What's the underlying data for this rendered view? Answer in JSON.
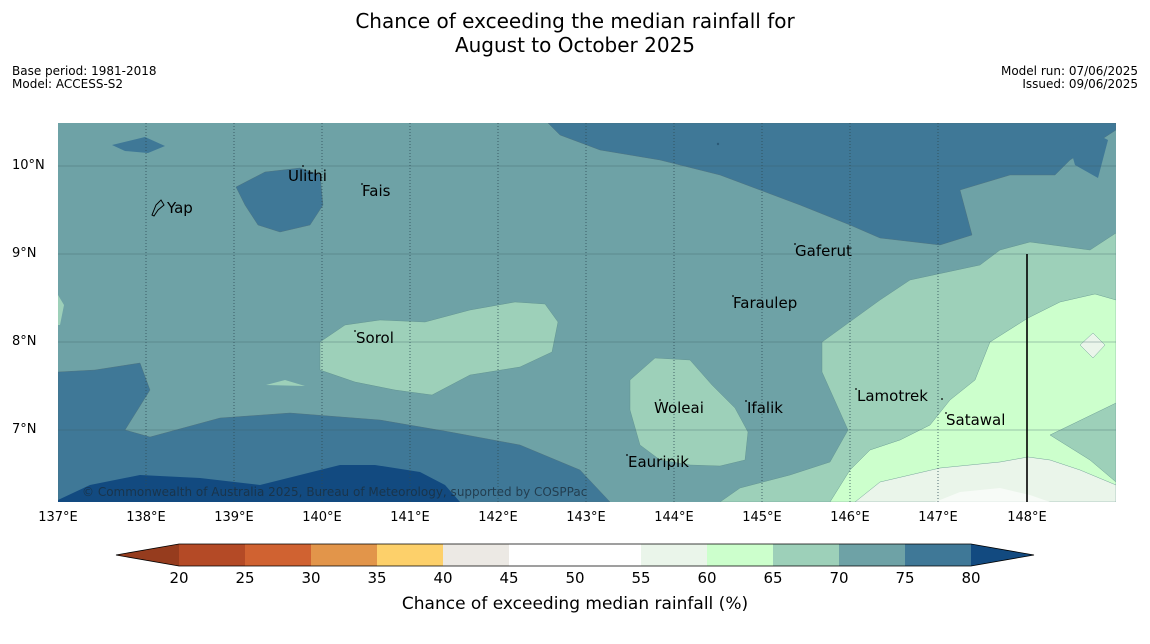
{
  "title": {
    "line1": "Chance of exceeding the median rainfall for",
    "line2": "August to October 2025"
  },
  "meta_left": {
    "base_period": "Base period: 1981-2018",
    "model": "Model: ACCESS-S2"
  },
  "meta_right": {
    "model_run": "Model run: 07/06/2025",
    "issued": "Issued: 09/06/2025"
  },
  "map": {
    "lat_labels": [
      "10°N",
      "9°N",
      "8°N",
      "7°N"
    ],
    "lon_labels": [
      "137°E",
      "138°E",
      "139°E",
      "140°E",
      "141°E",
      "142°E",
      "143°E",
      "144°E",
      "145°E",
      "146°E",
      "147°E",
      "148°E"
    ],
    "places": [
      "Yap",
      "Ulithi",
      "Fais",
      "Gaferut",
      "Faraulep",
      "Sorol",
      "Woleai",
      "Ifalik",
      "Lamotrek",
      "Satawal",
      "Eauripik"
    ],
    "copyright": "© Commonwealth of Australia 2025, Bureau of Meteorology, supported by COSPPac"
  },
  "colorbar": {
    "ticks": [
      "20",
      "25",
      "30",
      "35",
      "40",
      "45",
      "50",
      "55",
      "60",
      "65",
      "70",
      "75",
      "80"
    ],
    "label": "Chance of exceeding median rainfall (%)",
    "colors": {
      "below_20": "#963c1e",
      "c20_25": "#b44a26",
      "c25_30": "#d06231",
      "c30_35": "#e2954a",
      "c35_40": "#fdd06a",
      "c40_45": "#ece9e4",
      "c45_50": "#ffffff",
      "c50_55": "#ffffff",
      "c55_60": "#eaf5ea",
      "c60_65": "#ccffcc",
      "c65_70": "#9dd0b9",
      "c70_75": "#6ea2a6",
      "c75_80": "#3f7897",
      "above_80": "#124a80"
    }
  }
}
